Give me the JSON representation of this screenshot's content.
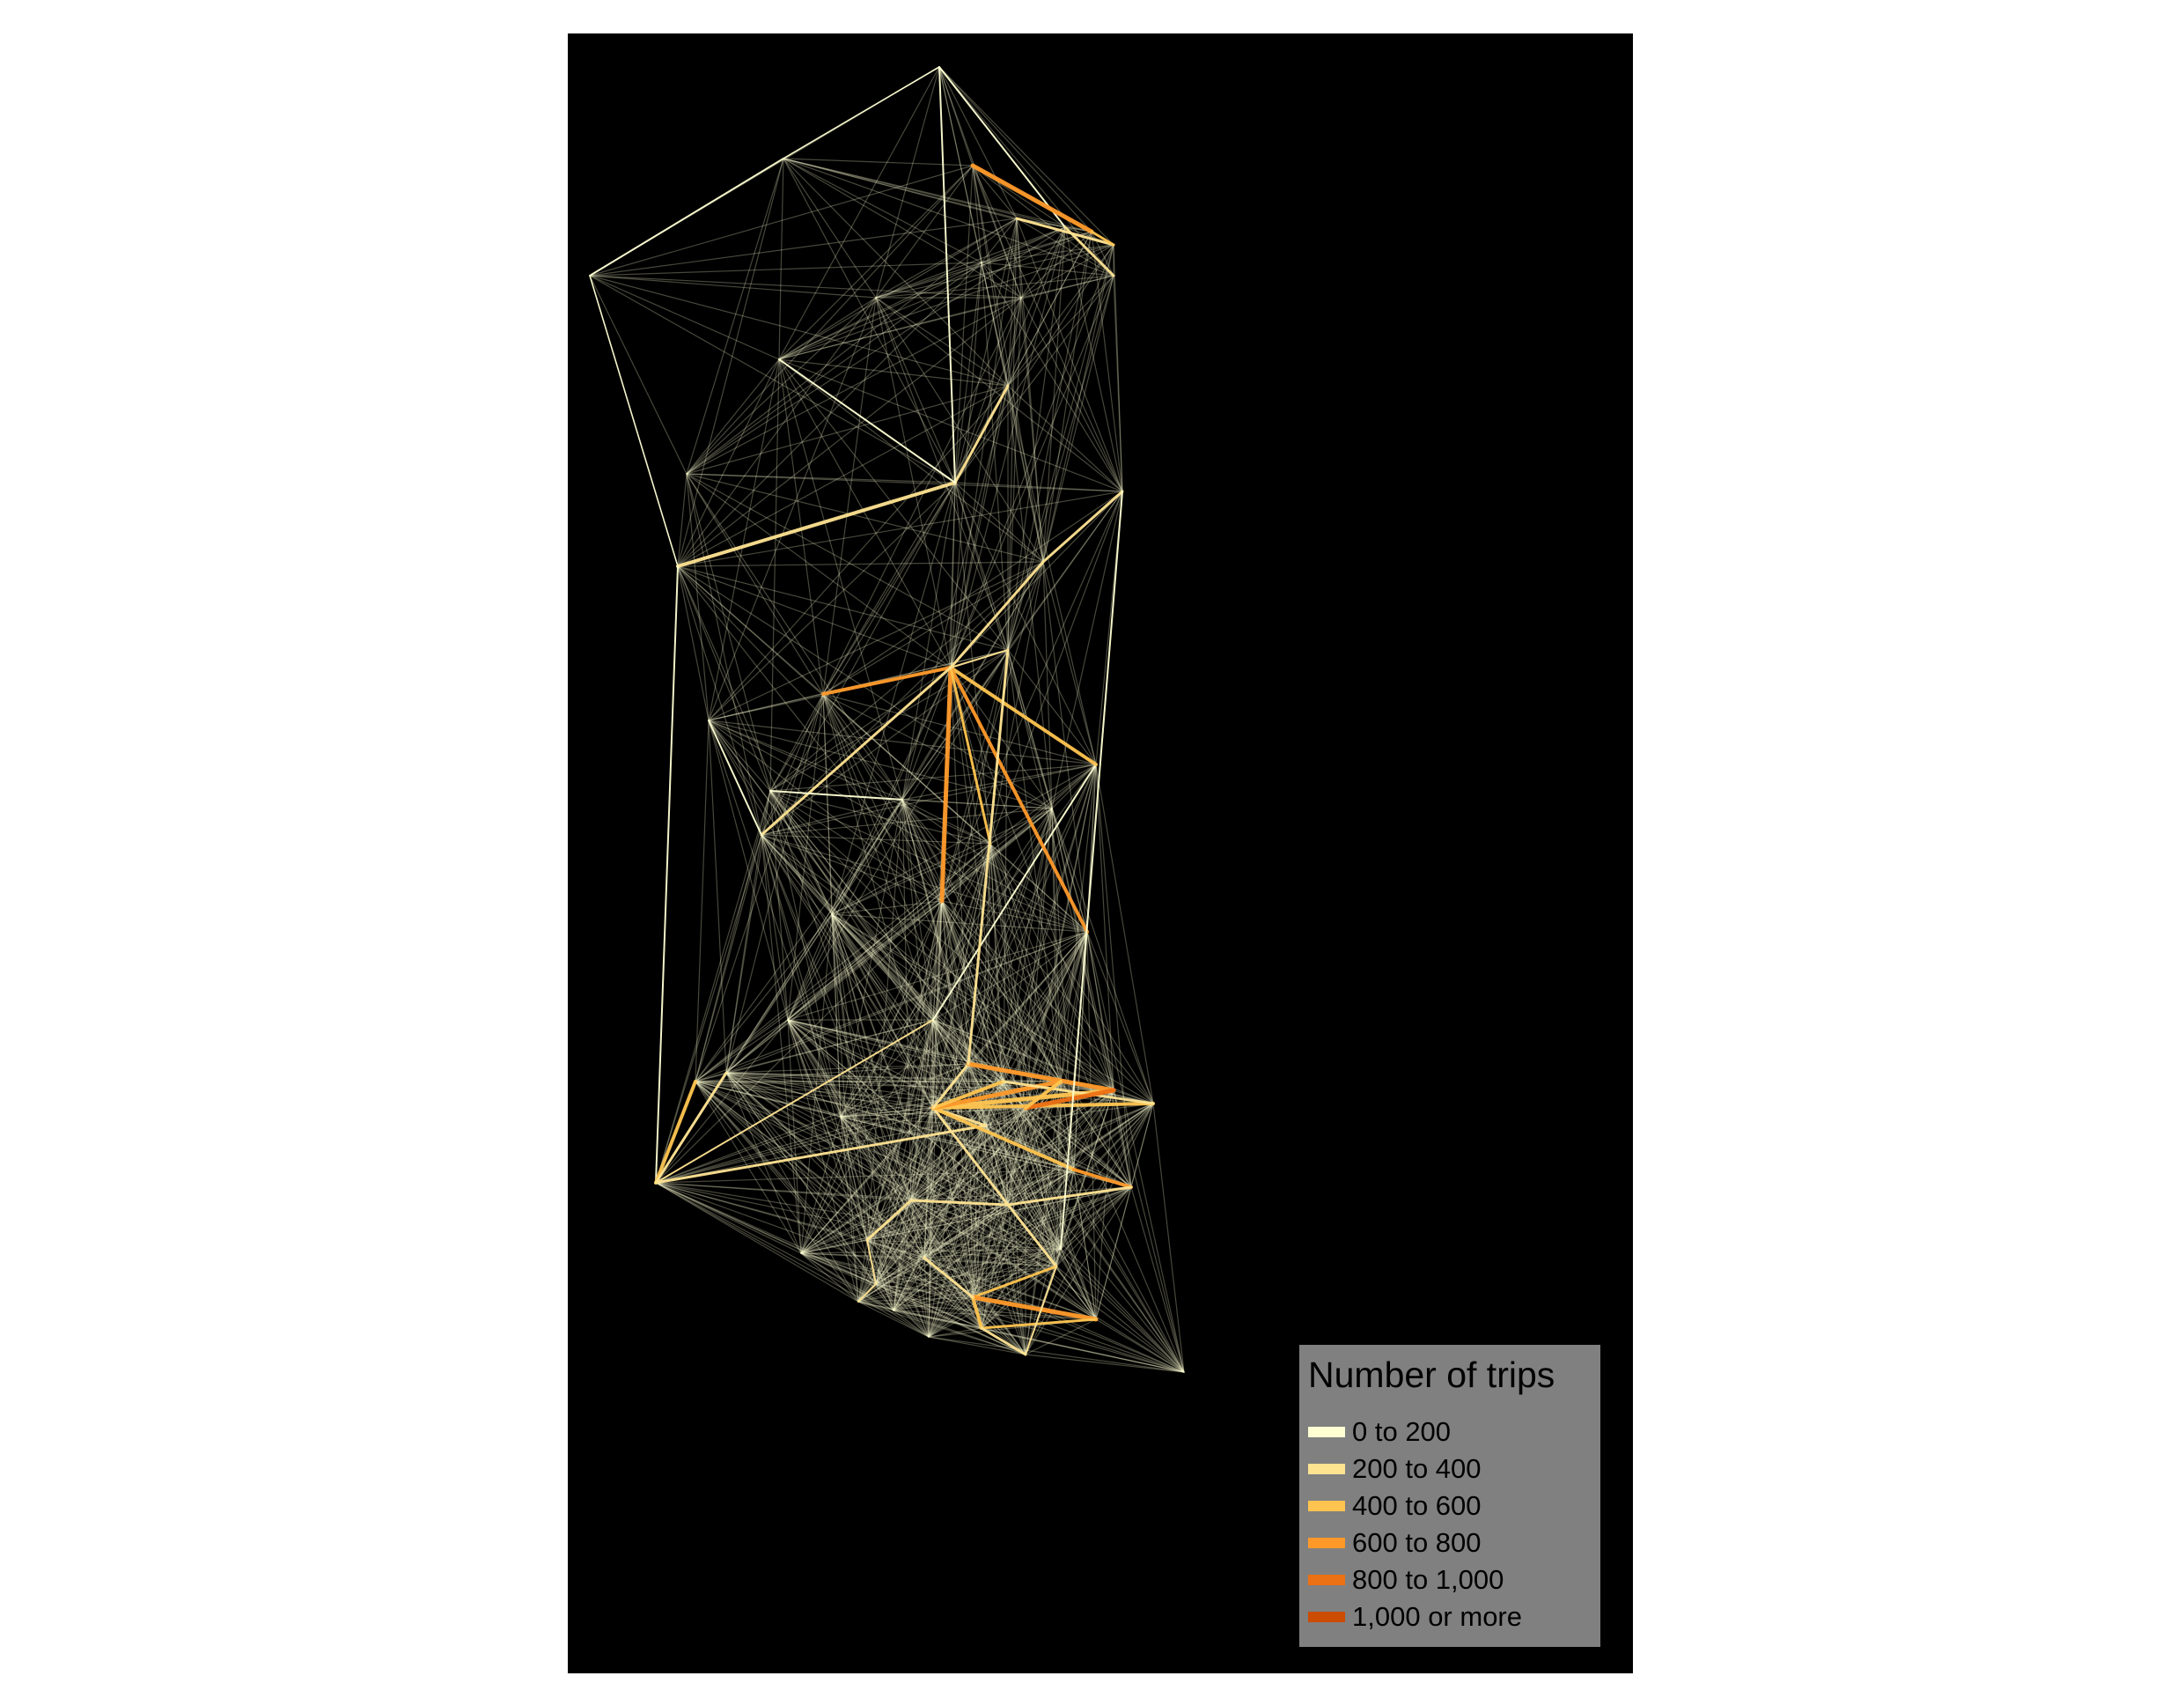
{
  "legend": {
    "title": "Number of trips",
    "classes": [
      {
        "label": "0 to 200",
        "color": "#ffffd4"
      },
      {
        "label": "200 to 400",
        "color": "#fee391"
      },
      {
        "label": "400 to 600",
        "color": "#fec44f"
      },
      {
        "label": "600 to 800",
        "color": "#fe9929"
      },
      {
        "label": "800 to 1,000",
        "color": "#ec7014"
      },
      {
        "label": "1,000 or more",
        "color": "#cc4c02"
      }
    ]
  },
  "colors": {
    "panel_background": "#000000",
    "legend_background": "#808080",
    "page_background": "#ffffff"
  }
}
